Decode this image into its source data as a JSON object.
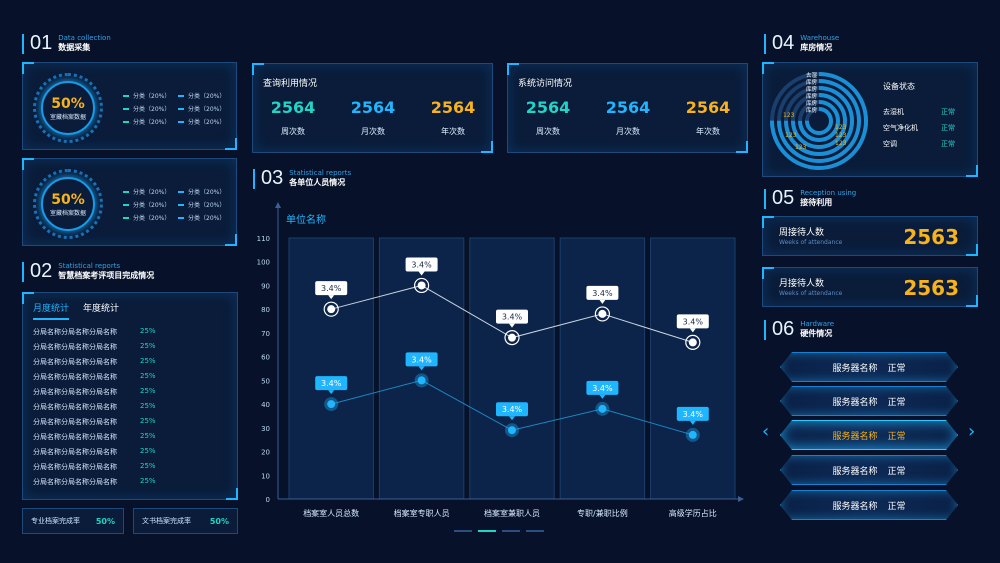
{
  "sections": {
    "s01": {
      "num": "01",
      "en": "Data collection",
      "cn": "数据采集"
    },
    "s02": {
      "num": "02",
      "en": "Statistical reports",
      "cn": "智慧档案考评项目完成情况"
    },
    "s03": {
      "num": "03",
      "en": "Statistical reports",
      "cn": "各单位人员情况"
    },
    "s04": {
      "num": "04",
      "en": "Warehouse",
      "cn": "库房情况"
    },
    "s05": {
      "num": "05",
      "en": "Reception using",
      "cn": "接待利用"
    },
    "s06": {
      "num": "06",
      "en": "Hardware",
      "cn": "硬件情况"
    }
  },
  "donuts": [
    {
      "value": "50%",
      "label": "室藏档案数据",
      "legend": [
        "分类（20%）",
        "分类（20%）",
        "分类（20%）",
        "分类（20%）",
        "分类（20%）",
        "分类（20%）"
      ]
    },
    {
      "value": "50%",
      "label": "室藏档案数据",
      "legend": [
        "分类（20%）",
        "分类（20%）",
        "分类（20%）",
        "分类（20%）",
        "分类（20%）",
        "分类（20%）"
      ]
    }
  ],
  "stats": [
    {
      "title": "查询利用情况",
      "items": [
        {
          "value": "2564",
          "label": "周次数",
          "color": "#1fd5c8"
        },
        {
          "value": "2564",
          "label": "月次数",
          "color": "#1fb6ff"
        },
        {
          "value": "2564",
          "label": "年次数",
          "color": "#f7b21c"
        }
      ]
    },
    {
      "title": "系统访问情况",
      "items": [
        {
          "value": "2564",
          "label": "周次数",
          "color": "#1fd5c8"
        },
        {
          "value": "2564",
          "label": "月次数",
          "color": "#1fb6ff"
        },
        {
          "value": "2564",
          "label": "年次数",
          "color": "#f7b21c"
        }
      ]
    }
  ],
  "progress": {
    "tabs": [
      "月度统计",
      "年度统计"
    ],
    "rows": [
      {
        "name": "分局名称分局名称分局名称",
        "pct": "25%"
      },
      {
        "name": "分局名称分局名称分局名称",
        "pct": "25%"
      },
      {
        "name": "分局名称分局名称分局名称",
        "pct": "25%"
      },
      {
        "name": "分局名称分局名称分局名称",
        "pct": "25%"
      },
      {
        "name": "分局名称分局名称分局名称",
        "pct": "25%"
      },
      {
        "name": "分局名称分局名称分局名称",
        "pct": "25%"
      },
      {
        "name": "分局名称分局名称分局名称",
        "pct": "25%"
      },
      {
        "name": "分局名称分局名称分局名称",
        "pct": "25%"
      },
      {
        "name": "分局名称分局名称分局名称",
        "pct": "25%"
      },
      {
        "name": "分局名称分局名称分局名称",
        "pct": "25%"
      },
      {
        "name": "分局名称分局名称分局名称",
        "pct": "25%"
      }
    ],
    "summary": [
      {
        "label": "专业档案完成率",
        "value": "50%"
      },
      {
        "label": "文书档案完成率",
        "value": "50%"
      }
    ]
  },
  "chart_data": {
    "type": "line",
    "title": "单位名称",
    "categories": [
      "档案室人员总数",
      "档案室专职人员",
      "档案室兼职人员",
      "专职/兼职比例",
      "高级学历占比"
    ],
    "ylim": [
      0,
      110
    ],
    "yticks": [
      0,
      10,
      20,
      30,
      40,
      50,
      60,
      70,
      80,
      90,
      100,
      110
    ],
    "series": [
      {
        "values": [
          80,
          90,
          68,
          78,
          66
        ],
        "labels": [
          "3.4%",
          "3.4%",
          "3.4%",
          "3.4%",
          "3.4%"
        ],
        "color": "#ffffff"
      },
      {
        "values": [
          40,
          50,
          29,
          38,
          27
        ],
        "labels": [
          "3.4%",
          "3.4%",
          "3.4%",
          "3.4%",
          "3.4%"
        ],
        "color": "#1fb6ff"
      }
    ],
    "grid": false
  },
  "warehouse": {
    "radial_labels": [
      "去湿",
      "库房",
      "库房",
      "库房",
      "库房",
      "库房"
    ],
    "radial_values": [
      "123",
      "123",
      "123",
      "123",
      "123",
      "123"
    ],
    "status_title": "设备状态",
    "devices": [
      {
        "name": "去湿机",
        "status": "正常"
      },
      {
        "name": "空气净化机",
        "status": "正常"
      },
      {
        "name": "空调",
        "status": "正常"
      }
    ]
  },
  "reception": [
    {
      "cn": "周接待人数",
      "en": "Weeks of attendance",
      "value": "2563"
    },
    {
      "cn": "月接待人数",
      "en": "Weeks of attendance",
      "value": "2563"
    }
  ],
  "hardware": [
    {
      "name": "服务器名称",
      "status": "正常"
    },
    {
      "name": "服务器名称",
      "status": "正常"
    },
    {
      "name": "服务器名称",
      "status": "正常"
    },
    {
      "name": "服务器名称",
      "status": "正常"
    },
    {
      "name": "服务器名称",
      "status": "正常"
    }
  ]
}
